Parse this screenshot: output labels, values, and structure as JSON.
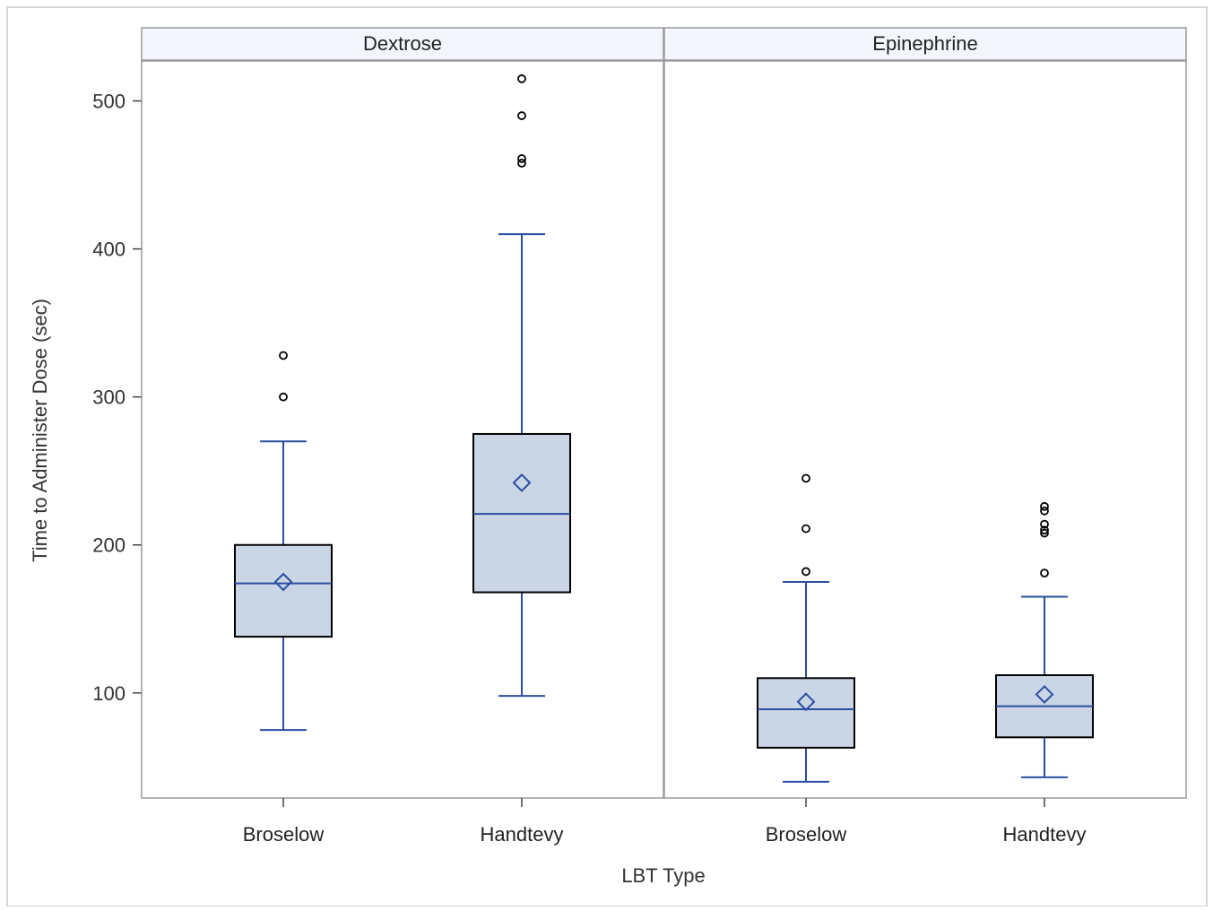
{
  "chart_data": {
    "type": "box",
    "ylabel": "Time to Administer Dose (sec)",
    "xlabel": "LBT Type",
    "yticks": [
      100,
      200,
      300,
      400,
      500
    ],
    "ylim": [
      29,
      527
    ],
    "categories": [
      "Broselow",
      "Handtevy"
    ],
    "panels": [
      {
        "name": "Dextrose",
        "boxes": [
          {
            "category": "Broselow",
            "whisker_low": 75,
            "q1": 138,
            "median": 174,
            "q3": 200,
            "whisker_high": 270,
            "mean": 175,
            "outliers": [
              300,
              328
            ]
          },
          {
            "category": "Handtevy",
            "whisker_low": 98,
            "q1": 168,
            "median": 221,
            "q3": 275,
            "whisker_high": 410,
            "mean": 242,
            "outliers": [
              458,
              461,
              490,
              515
            ]
          }
        ]
      },
      {
        "name": "Epinephrine",
        "boxes": [
          {
            "category": "Broselow",
            "whisker_low": 40,
            "q1": 63,
            "median": 89,
            "q3": 110,
            "whisker_high": 175,
            "mean": 94,
            "outliers": [
              182,
              211,
              245
            ]
          },
          {
            "category": "Handtevy",
            "whisker_low": 43,
            "q1": 70,
            "median": 91,
            "q3": 112,
            "whisker_high": 165,
            "mean": 99,
            "outliers": [
              181,
              208,
              210,
              214,
              223,
              226
            ]
          }
        ]
      }
    ],
    "colors": {
      "box_fill": "#cad5e5",
      "box_stroke": "#000000",
      "whisker": "#2a4ea2",
      "header_fill": "#f3f6fd",
      "frame": "#9a9a9a"
    }
  }
}
